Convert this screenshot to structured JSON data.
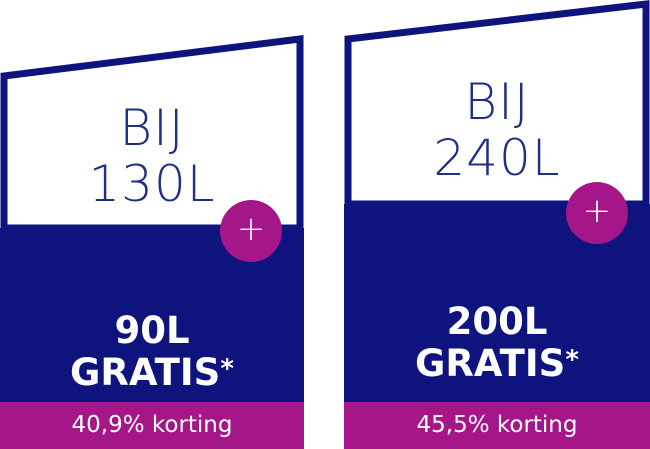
{
  "colors": {
    "navy": "#0f137e",
    "magenta": "#a51789",
    "outline": "#0f137e",
    "text_blue": "#1f2f86",
    "white": "#ffffff"
  },
  "offers": [
    {
      "top_line_1": "BIJ",
      "top_line_2": "130L",
      "plus_symbol": "+",
      "free_amount": "90L",
      "free_label": "GRATIS",
      "asterisk": "*",
      "discount": "40,9% korting"
    },
    {
      "top_line_1": "BIJ",
      "top_line_2": "240L",
      "plus_symbol": "+",
      "free_amount": "200L",
      "free_label": "GRATIS",
      "asterisk": "*",
      "discount": "45,5% korting"
    }
  ]
}
